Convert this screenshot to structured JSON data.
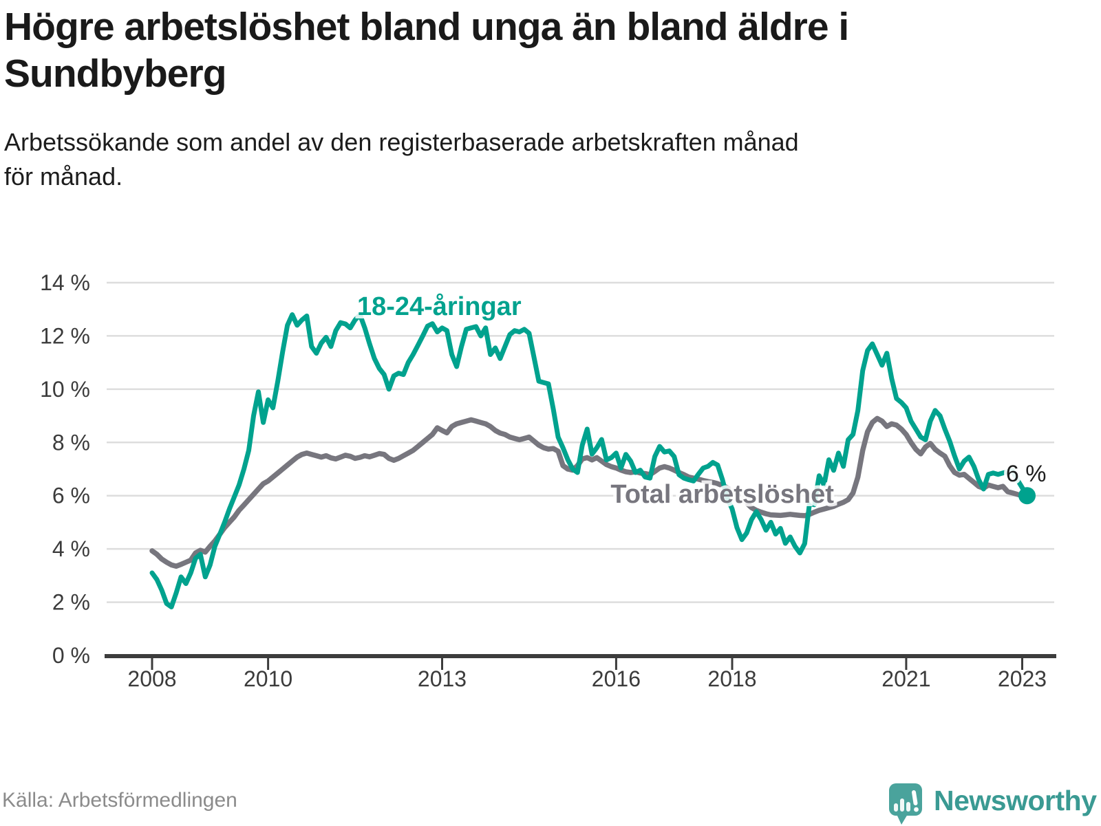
{
  "chart_data": {
    "type": "line",
    "title": "Högre arbetslöshet bland unga än bland äldre i Sundbyberg",
    "title_lines": [
      "Högre arbetslöshet bland unga än bland äldre i",
      "Sundbyberg"
    ],
    "subtitle_lines": [
      "Arbetssökande som andel av den registerbaserade arbetskraften månad",
      "för månad."
    ],
    "source": "Källa: Arbetsförmedlingen",
    "x_start_year": 2008,
    "x_monthly": true,
    "ylim": [
      0,
      14
    ],
    "grid": true,
    "grid_color": "#dddddd",
    "axis_color": "#3c3c3c",
    "tick_text_color": "#3b3b3b",
    "yticks": {
      "values": [
        0,
        2,
        4,
        6,
        8,
        10,
        12,
        14
      ],
      "labels": [
        "0 %",
        "2 %",
        "4 %",
        "6 %",
        "8 %",
        "10 %",
        "12 %",
        "14 %"
      ]
    },
    "xticks": {
      "values": [
        2008,
        2010,
        2013,
        2016,
        2018,
        2021,
        2023
      ],
      "labels": [
        "2008",
        "2010",
        "2013",
        "2016",
        "2018",
        "2021",
        "2023"
      ]
    },
    "series": [
      {
        "name": "18-24-åringar",
        "color": "#00a28e",
        "width": 7,
        "end_dot": true,
        "end_dot_radius": 12.5,
        "label": {
          "text": "18-24-åringar",
          "x": 2012.95,
          "y": 12.78,
          "anchor": "middle"
        },
        "values": [
          3.1,
          2.85,
          2.45,
          1.95,
          1.82,
          2.35,
          2.95,
          2.7,
          3.1,
          3.65,
          3.8,
          2.95,
          3.4,
          4.1,
          4.55,
          5.0,
          5.5,
          5.95,
          6.4,
          7.0,
          7.7,
          9.0,
          9.9,
          8.75,
          9.6,
          9.3,
          10.3,
          11.4,
          12.4,
          12.8,
          12.4,
          12.6,
          12.75,
          11.6,
          11.35,
          11.73,
          11.95,
          11.6,
          12.2,
          12.5,
          12.45,
          12.3,
          12.6,
          12.8,
          12.3,
          11.7,
          11.15,
          10.78,
          10.55,
          10.0,
          10.5,
          10.6,
          10.55,
          11.0,
          11.3,
          11.65,
          12.0,
          12.37,
          12.46,
          12.15,
          12.3,
          12.2,
          11.3,
          10.85,
          11.6,
          12.25,
          12.3,
          12.35,
          12.0,
          12.3,
          11.3,
          11.55,
          11.15,
          11.6,
          12.05,
          12.2,
          12.15,
          12.25,
          12.1,
          11.2,
          10.3,
          10.25,
          10.2,
          9.25,
          8.2,
          7.8,
          7.35,
          7.0,
          6.87,
          7.9,
          8.5,
          7.56,
          7.8,
          8.11,
          7.34,
          7.43,
          7.6,
          7.04,
          7.55,
          7.3,
          6.87,
          6.96,
          6.7,
          6.66,
          7.47,
          7.85,
          7.64,
          7.68,
          7.47,
          6.79,
          6.66,
          6.6,
          6.55,
          6.8,
          7.04,
          7.1,
          7.25,
          7.15,
          6.6,
          5.9,
          5.5,
          4.8,
          4.35,
          4.6,
          5.1,
          5.4,
          5.1,
          4.7,
          5.0,
          4.56,
          4.77,
          4.21,
          4.45,
          4.1,
          3.85,
          4.2,
          5.7,
          5.66,
          6.75,
          6.4,
          7.35,
          6.95,
          7.6,
          7.1,
          8.1,
          8.3,
          9.2,
          10.7,
          11.45,
          11.7,
          11.3,
          10.9,
          11.35,
          10.4,
          9.65,
          9.5,
          9.3,
          8.8,
          8.5,
          8.2,
          8.1,
          8.8,
          9.2,
          9.0,
          8.5,
          8.05,
          7.5,
          7.0,
          7.3,
          7.45,
          7.1,
          6.6,
          6.25,
          6.8,
          6.85,
          6.8,
          6.85,
          6.9,
          6.95,
          6.6,
          6.3,
          6.0
        ]
      },
      {
        "name": "Total arbetslöshet",
        "color": "#77767e",
        "width": 7.5,
        "end_dot": false,
        "label": {
          "text": "Total arbetslöshet",
          "x": 2017.83,
          "y": 5.73,
          "anchor": "middle"
        },
        "values": [
          3.93,
          3.8,
          3.62,
          3.5,
          3.4,
          3.35,
          3.42,
          3.5,
          3.58,
          3.85,
          3.95,
          3.88,
          4.1,
          4.3,
          4.55,
          4.8,
          5.0,
          5.2,
          5.45,
          5.65,
          5.85,
          6.05,
          6.25,
          6.45,
          6.55,
          6.7,
          6.85,
          7.0,
          7.15,
          7.3,
          7.45,
          7.55,
          7.6,
          7.55,
          7.5,
          7.45,
          7.5,
          7.42,
          7.38,
          7.45,
          7.52,
          7.48,
          7.4,
          7.44,
          7.5,
          7.46,
          7.52,
          7.58,
          7.55,
          7.4,
          7.33,
          7.4,
          7.5,
          7.6,
          7.7,
          7.85,
          8.0,
          8.15,
          8.3,
          8.55,
          8.45,
          8.36,
          8.6,
          8.7,
          8.75,
          8.8,
          8.85,
          8.8,
          8.75,
          8.7,
          8.6,
          8.45,
          8.35,
          8.3,
          8.2,
          8.15,
          8.1,
          8.15,
          8.2,
          8.05,
          7.9,
          7.8,
          7.75,
          7.77,
          7.67,
          7.13,
          7.0,
          6.96,
          7.13,
          7.38,
          7.43,
          7.34,
          7.43,
          7.3,
          7.17,
          7.09,
          7.04,
          6.96,
          6.9,
          6.87,
          6.9,
          6.85,
          6.83,
          6.79,
          6.91,
          7.04,
          7.09,
          7.04,
          6.96,
          6.87,
          6.79,
          6.7,
          6.66,
          6.62,
          6.57,
          6.53,
          6.5,
          6.45,
          6.38,
          6.3,
          6.2,
          6.05,
          5.9,
          5.72,
          5.55,
          5.45,
          5.38,
          5.32,
          5.28,
          5.27,
          5.26,
          5.28,
          5.3,
          5.28,
          5.26,
          5.25,
          5.3,
          5.38,
          5.45,
          5.5,
          5.55,
          5.6,
          5.68,
          5.75,
          5.85,
          6.1,
          6.7,
          7.7,
          8.4,
          8.75,
          8.9,
          8.8,
          8.6,
          8.7,
          8.65,
          8.5,
          8.3,
          8.0,
          7.74,
          7.57,
          7.83,
          7.96,
          7.74,
          7.6,
          7.48,
          7.13,
          6.87,
          6.77,
          6.8,
          6.65,
          6.5,
          6.35,
          6.28,
          6.4,
          6.35,
          6.3,
          6.35,
          6.15,
          6.1,
          6.05,
          6.0,
          5.95
        ]
      }
    ],
    "end_annotation": {
      "text": "6 %",
      "x": 2022.72,
      "y": 6.53
    }
  },
  "brand": {
    "name": "Newsworthy"
  }
}
